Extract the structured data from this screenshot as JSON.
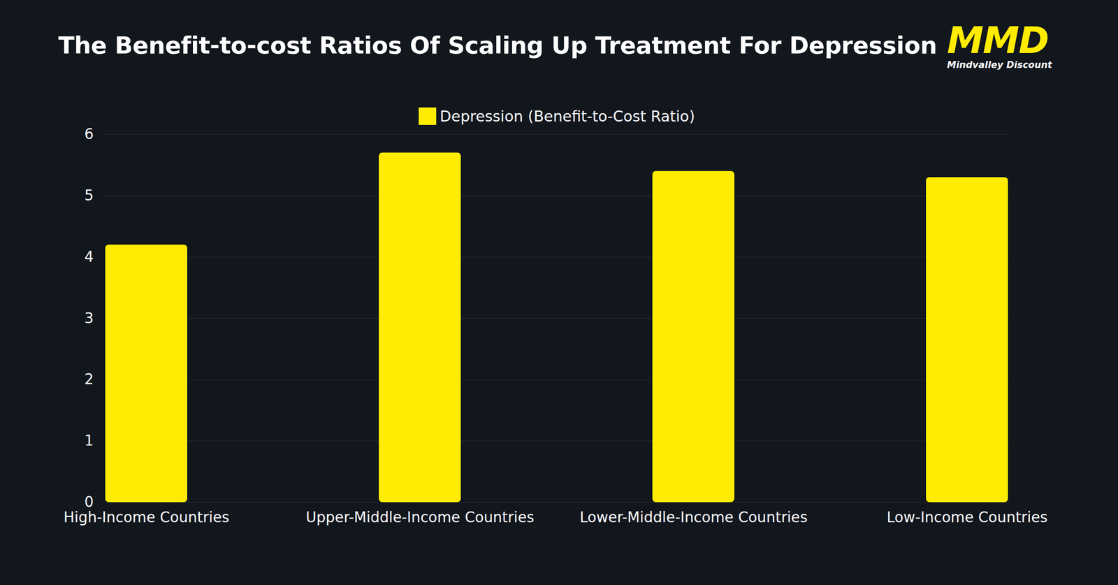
{
  "chart_data": {
    "type": "bar",
    "title": "The Benefit-to-cost Ratios Of Scaling Up Treatment For Depression",
    "logo": {
      "text": "MMD",
      "subtext": "Mindvalley Discount"
    },
    "categories": [
      "High-Income Countries",
      "Upper-Middle-Income Countries",
      "Lower-Middle-Income Countries",
      "Low-Income Countries"
    ],
    "series": [
      {
        "name": "Depression (Benefit-to-Cost Ratio)",
        "color": "#ffec00",
        "values": [
          4.2,
          5.7,
          5.4,
          5.3
        ]
      }
    ],
    "ylim": [
      0,
      6
    ],
    "yticks": [
      0,
      1,
      2,
      3,
      4,
      5,
      6
    ],
    "grid": true,
    "legend": "top"
  }
}
